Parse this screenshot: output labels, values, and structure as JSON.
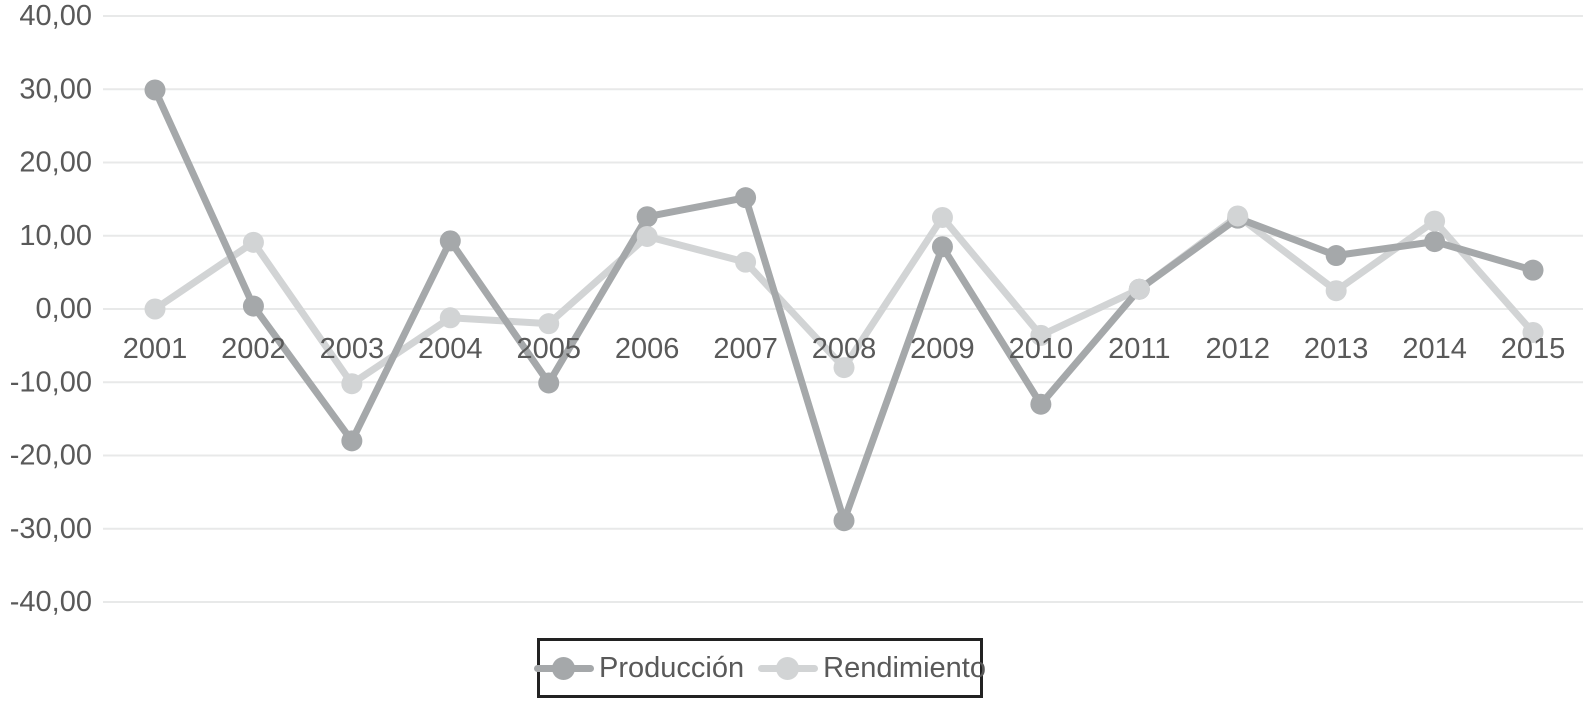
{
  "chart_data": {
    "type": "line",
    "title": "",
    "xlabel": "",
    "ylabel": "",
    "categories": [
      "2001",
      "2002",
      "2003",
      "2004",
      "2005",
      "2006",
      "2007",
      "2008",
      "2009",
      "2010",
      "2011",
      "2012",
      "2013",
      "2014",
      "2015"
    ],
    "series": [
      {
        "name": "Producción",
        "color": "#a5a8aa",
        "marker": "circle",
        "values": [
          29.9,
          0.4,
          -18.0,
          9.3,
          -10.1,
          12.6,
          15.2,
          -28.9,
          8.5,
          -13.0,
          2.7,
          12.4,
          7.3,
          9.2,
          5.3
        ]
      },
      {
        "name": "Rendimiento",
        "color": "#d2d4d5",
        "marker": "circle",
        "values": [
          0.0,
          9.1,
          -10.2,
          -1.2,
          -2.0,
          9.9,
          6.4,
          -8.0,
          12.5,
          -3.6,
          2.7,
          12.7,
          2.5,
          12.0,
          -3.2
        ]
      }
    ],
    "ylim": [
      -40,
      40
    ],
    "yticks": [
      {
        "value": 40,
        "label": "40,00"
      },
      {
        "value": 30,
        "label": "30,00"
      },
      {
        "value": 20,
        "label": "20,00"
      },
      {
        "value": 10,
        "label": "10,00"
      },
      {
        "value": 0,
        "label": "0,00"
      },
      {
        "value": -10,
        "label": "-10,00"
      },
      {
        "value": -20,
        "label": "-20,00"
      },
      {
        "value": -30,
        "label": "-30,00"
      },
      {
        "value": -40,
        "label": "-40,00"
      }
    ],
    "grid": true,
    "grid_color": "#e8e9e9",
    "axis_text_color": "#595959",
    "legend_position": "bottom",
    "legend_border_color": "#222222"
  }
}
